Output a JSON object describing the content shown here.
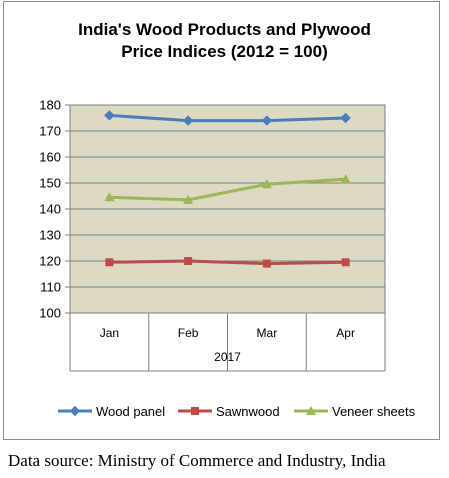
{
  "chart_data": {
    "type": "line",
    "title_lines": [
      "India's Wood Products and Plywood",
      "Price Indices (2012 = 100)"
    ],
    "categories": [
      "Jan",
      "Feb",
      "Mar",
      "Apr"
    ],
    "group_label": "2017",
    "ylim": [
      100,
      180
    ],
    "yticks": [
      100,
      110,
      120,
      130,
      140,
      150,
      160,
      170,
      180
    ],
    "grid": true,
    "plot_background": "#ddd9c3",
    "legend_position": "bottom",
    "series": [
      {
        "name": "Wood panel",
        "color": "#4a7ebb",
        "values": [
          176,
          174,
          174,
          175
        ]
      },
      {
        "name": "Sawnwood",
        "color": "#be4b48",
        "values": [
          119.5,
          120,
          119,
          119.5
        ]
      },
      {
        "name": "Veneer sheets",
        "color": "#98b954",
        "values": [
          144.5,
          143.5,
          149.5,
          151.5
        ]
      }
    ]
  },
  "source_note": "Data source: Ministry of Commerce and Industry, India"
}
